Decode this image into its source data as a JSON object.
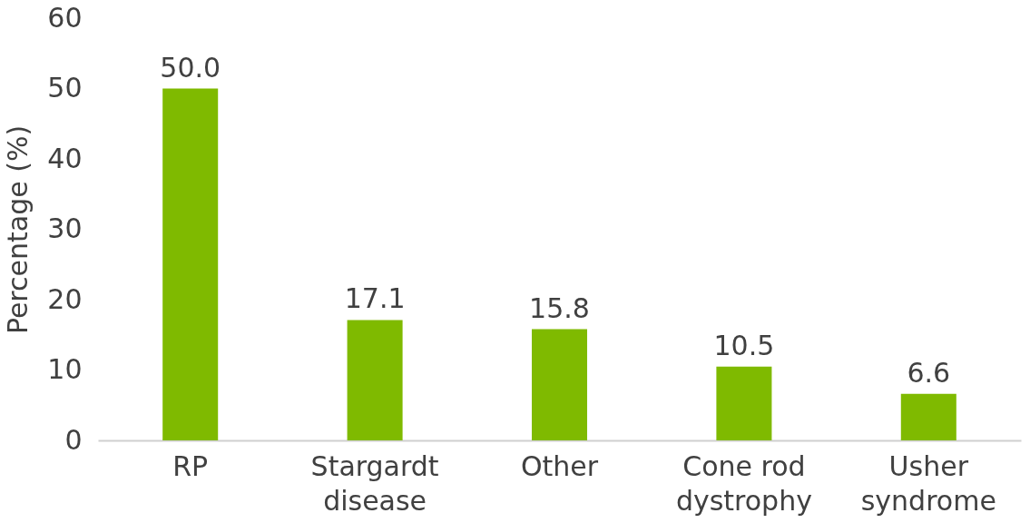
{
  "chart_data": {
    "type": "bar",
    "ylabel": "Percentage (%)",
    "categories": [
      "RP",
      "Stargardt\ndisease",
      "Other",
      "Cone rod\ndystrophy",
      "Usher\nsyndrome"
    ],
    "values": [
      50.0,
      17.1,
      15.8,
      10.5,
      6.6
    ],
    "color": "#7fba00",
    "value_labels": [
      "50.0",
      "17.1",
      "15.8",
      "10.5",
      "6.6"
    ],
    "ylim": [
      0,
      60
    ],
    "yticks": [
      0,
      10,
      20,
      30,
      40,
      50,
      60
    ],
    "grid": false
  }
}
